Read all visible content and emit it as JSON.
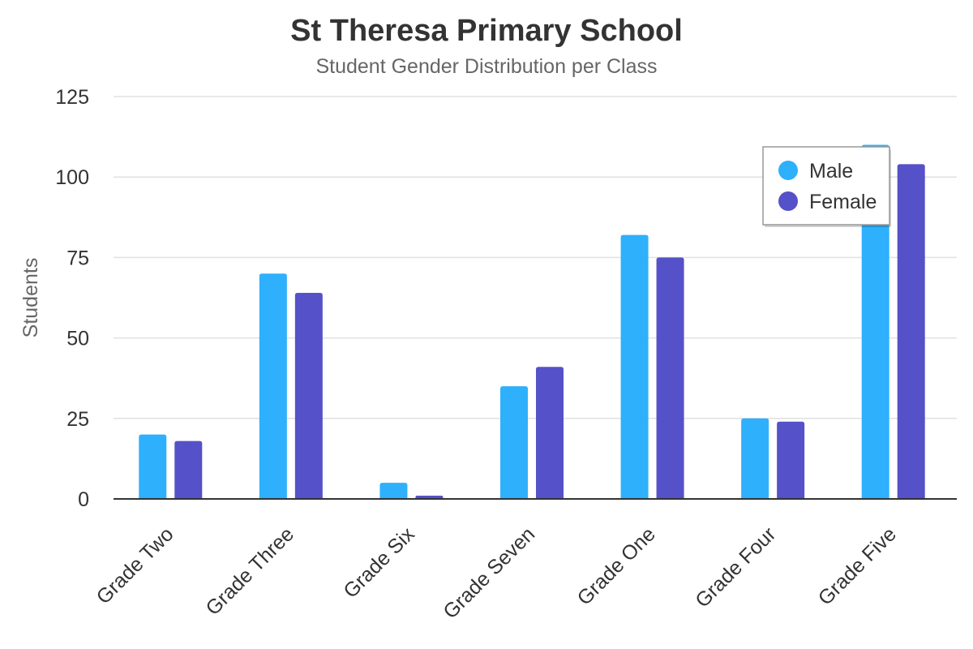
{
  "chart_data": {
    "type": "bar",
    "title": "St Theresa Primary School",
    "subtitle": "Student Gender Distribution per Class",
    "xlabel": "",
    "ylabel": "Students",
    "ylim": [
      0,
      125
    ],
    "yticks": [
      0,
      25,
      50,
      75,
      100,
      125
    ],
    "grid": true,
    "legend_position": "top-right",
    "categories": [
      "Grade Two",
      "Grade Three",
      "Grade Six",
      "Grade Seven",
      "Grade One",
      "Grade Four",
      "Grade Five"
    ],
    "series": [
      {
        "name": "Male",
        "color": "#2eb0fc",
        "values": [
          20,
          70,
          5,
          35,
          82,
          25,
          110
        ]
      },
      {
        "name": "Female",
        "color": "#5551c8",
        "values": [
          18,
          64,
          1,
          41,
          75,
          24,
          104
        ]
      }
    ]
  }
}
